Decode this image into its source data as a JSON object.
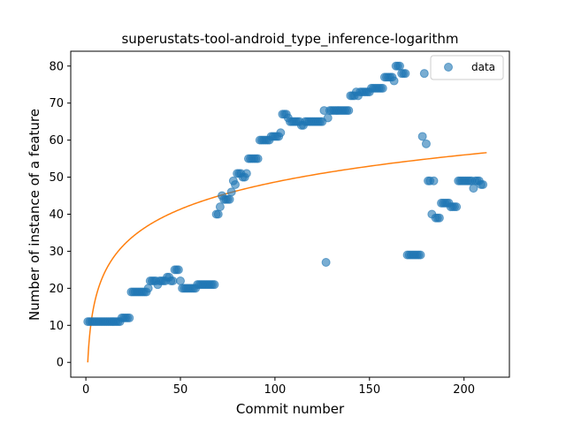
{
  "chart_data": {
    "type": "scatter",
    "title": "superustats-tool-android_type_inference-logarithm",
    "xlabel": "Commit number",
    "ylabel": "Number of instance of a feature",
    "xlim": [
      -8,
      224
    ],
    "ylim": [
      -4,
      84
    ],
    "xticks": [
      0,
      50,
      100,
      150,
      200
    ],
    "yticks": [
      0,
      10,
      20,
      30,
      40,
      50,
      60,
      70,
      80
    ],
    "grid": false,
    "legend": {
      "placement": "top-right",
      "entries": [
        "data"
      ]
    },
    "series": [
      {
        "name": "data",
        "kind": "scatter",
        "color": "#1f77b4",
        "alpha": 0.6,
        "points": [
          [
            1,
            11
          ],
          [
            2,
            11
          ],
          [
            3,
            11
          ],
          [
            4,
            11
          ],
          [
            5,
            11
          ],
          [
            6,
            11
          ],
          [
            7,
            11
          ],
          [
            8,
            11
          ],
          [
            9,
            11
          ],
          [
            10,
            11
          ],
          [
            11,
            11
          ],
          [
            12,
            11
          ],
          [
            13,
            11
          ],
          [
            14,
            11
          ],
          [
            15,
            11
          ],
          [
            16,
            11
          ],
          [
            17,
            11
          ],
          [
            18,
            11
          ],
          [
            19,
            12
          ],
          [
            20,
            12
          ],
          [
            21,
            12
          ],
          [
            22,
            12
          ],
          [
            23,
            12
          ],
          [
            24,
            19
          ],
          [
            25,
            19
          ],
          [
            26,
            19
          ],
          [
            27,
            19
          ],
          [
            28,
            19
          ],
          [
            29,
            19
          ],
          [
            30,
            19
          ],
          [
            31,
            19
          ],
          [
            32,
            19
          ],
          [
            33,
            20
          ],
          [
            34,
            22
          ],
          [
            35,
            22
          ],
          [
            36,
            22
          ],
          [
            37,
            22
          ],
          [
            38,
            21
          ],
          [
            39,
            22
          ],
          [
            40,
            22
          ],
          [
            41,
            22
          ],
          [
            42,
            22
          ],
          [
            43,
            23
          ],
          [
            44,
            23
          ],
          [
            45,
            22
          ],
          [
            46,
            22
          ],
          [
            47,
            25
          ],
          [
            48,
            25
          ],
          [
            49,
            25
          ],
          [
            50,
            22
          ],
          [
            51,
            20
          ],
          [
            52,
            20
          ],
          [
            53,
            20
          ],
          [
            54,
            20
          ],
          [
            55,
            20
          ],
          [
            56,
            20
          ],
          [
            57,
            20
          ],
          [
            58,
            20
          ],
          [
            59,
            21
          ],
          [
            60,
            21
          ],
          [
            61,
            21
          ],
          [
            62,
            21
          ],
          [
            63,
            21
          ],
          [
            64,
            21
          ],
          [
            65,
            21
          ],
          [
            66,
            21
          ],
          [
            67,
            21
          ],
          [
            68,
            21
          ],
          [
            69,
            40
          ],
          [
            70,
            40
          ],
          [
            71,
            42
          ],
          [
            72,
            45
          ],
          [
            73,
            44
          ],
          [
            74,
            44
          ],
          [
            75,
            44
          ],
          [
            76,
            44
          ],
          [
            77,
            46
          ],
          [
            78,
            49
          ],
          [
            79,
            48
          ],
          [
            80,
            51
          ],
          [
            81,
            51
          ],
          [
            82,
            51
          ],
          [
            83,
            50
          ],
          [
            84,
            50
          ],
          [
            85,
            51
          ],
          [
            86,
            55
          ],
          [
            87,
            55
          ],
          [
            88,
            55
          ],
          [
            89,
            55
          ],
          [
            90,
            55
          ],
          [
            91,
            55
          ],
          [
            92,
            60
          ],
          [
            93,
            60
          ],
          [
            94,
            60
          ],
          [
            95,
            60
          ],
          [
            96,
            60
          ],
          [
            97,
            60
          ],
          [
            98,
            61
          ],
          [
            99,
            61
          ],
          [
            100,
            61
          ],
          [
            101,
            61
          ],
          [
            102,
            61
          ],
          [
            103,
            62
          ],
          [
            104,
            67
          ],
          [
            105,
            67
          ],
          [
            106,
            67
          ],
          [
            107,
            66
          ],
          [
            108,
            65
          ],
          [
            109,
            65
          ],
          [
            110,
            65
          ],
          [
            111,
            65
          ],
          [
            112,
            65
          ],
          [
            113,
            65
          ],
          [
            114,
            64
          ],
          [
            115,
            64
          ],
          [
            116,
            65
          ],
          [
            117,
            65
          ],
          [
            118,
            65
          ],
          [
            119,
            65
          ],
          [
            120,
            65
          ],
          [
            121,
            65
          ],
          [
            122,
            65
          ],
          [
            123,
            65
          ],
          [
            124,
            65
          ],
          [
            125,
            65
          ],
          [
            126,
            68
          ],
          [
            127,
            27
          ],
          [
            128,
            66
          ],
          [
            129,
            68
          ],
          [
            130,
            68
          ],
          [
            131,
            68
          ],
          [
            132,
            68
          ],
          [
            133,
            68
          ],
          [
            134,
            68
          ],
          [
            135,
            68
          ],
          [
            136,
            68
          ],
          [
            137,
            68
          ],
          [
            138,
            68
          ],
          [
            139,
            68
          ],
          [
            140,
            72
          ],
          [
            141,
            72
          ],
          [
            142,
            72
          ],
          [
            143,
            73
          ],
          [
            144,
            72
          ],
          [
            145,
            73
          ],
          [
            146,
            73
          ],
          [
            147,
            73
          ],
          [
            148,
            73
          ],
          [
            149,
            73
          ],
          [
            150,
            73
          ],
          [
            151,
            74
          ],
          [
            152,
            74
          ],
          [
            153,
            74
          ],
          [
            154,
            74
          ],
          [
            155,
            74
          ],
          [
            156,
            74
          ],
          [
            157,
            74
          ],
          [
            158,
            77
          ],
          [
            159,
            77
          ],
          [
            160,
            77
          ],
          [
            161,
            77
          ],
          [
            162,
            77
          ],
          [
            163,
            76
          ],
          [
            164,
            80
          ],
          [
            165,
            80
          ],
          [
            166,
            80
          ],
          [
            167,
            78
          ],
          [
            168,
            78
          ],
          [
            169,
            78
          ],
          [
            170,
            29
          ],
          [
            171,
            29
          ],
          [
            172,
            29
          ],
          [
            173,
            29
          ],
          [
            174,
            29
          ],
          [
            175,
            29
          ],
          [
            176,
            29
          ],
          [
            177,
            29
          ],
          [
            178,
            61
          ],
          [
            179,
            78
          ],
          [
            180,
            59
          ],
          [
            181,
            49
          ],
          [
            182,
            49
          ],
          [
            183,
            40
          ],
          [
            184,
            49
          ],
          [
            185,
            39
          ],
          [
            186,
            39
          ],
          [
            187,
            39
          ],
          [
            188,
            43
          ],
          [
            189,
            43
          ],
          [
            190,
            43
          ],
          [
            191,
            43
          ],
          [
            192,
            43
          ],
          [
            193,
            42
          ],
          [
            194,
            42
          ],
          [
            195,
            42
          ],
          [
            196,
            42
          ],
          [
            197,
            49
          ],
          [
            198,
            49
          ],
          [
            199,
            49
          ],
          [
            200,
            49
          ],
          [
            201,
            49
          ],
          [
            202,
            49
          ],
          [
            203,
            49
          ],
          [
            204,
            49
          ],
          [
            205,
            47
          ],
          [
            206,
            49
          ],
          [
            207,
            49
          ],
          [
            208,
            49
          ],
          [
            209,
            48
          ],
          [
            210,
            48
          ]
        ]
      },
      {
        "name": "",
        "kind": "line",
        "color": "#ff7f0e",
        "model": "logarithmic",
        "x_range": [
          1,
          212
        ],
        "coefficients": {
          "a": 0.0,
          "b": 10.57
        }
      }
    ]
  }
}
